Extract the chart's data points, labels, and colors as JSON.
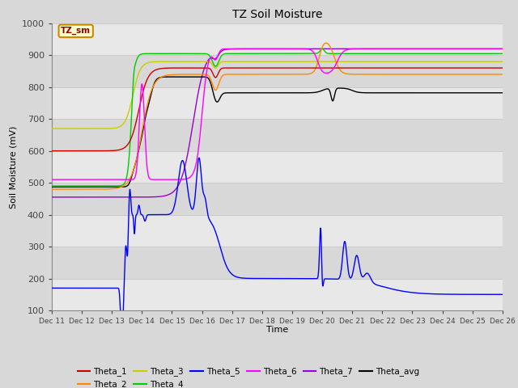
{
  "title": "TZ Soil Moisture",
  "ylabel": "Soil Moisture (mV)",
  "xlabel": "Time",
  "legend_label": "TZ_sm",
  "ylim": [
    100,
    1000
  ],
  "yticks": [
    100,
    200,
    300,
    400,
    500,
    600,
    700,
    800,
    900,
    1000
  ],
  "colors": {
    "Theta_1": "#cc0000",
    "Theta_2": "#ff8800",
    "Theta_3": "#cccc00",
    "Theta_4": "#00cc00",
    "Theta_5": "#0000ff",
    "Theta_6": "#ff00ff",
    "Theta_7": "#9900cc",
    "Theta_avg": "#000000"
  },
  "bg_color": "#e8e8e8",
  "figsize": [
    6.4,
    4.8
  ],
  "dpi": 100
}
